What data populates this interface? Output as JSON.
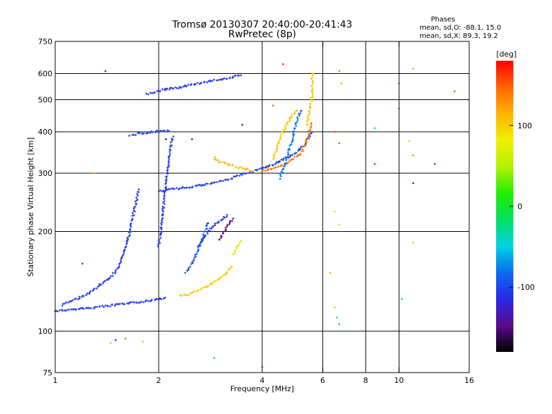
{
  "chart_data": {
    "type": "scatter",
    "title": "Tromsø 20130307 20:40:00-20:41:43",
    "subtitle": "RwPretec (8p)",
    "xlabel": "Frequency [MHz]",
    "ylabel": "Stationary phase Virtual Height [km]",
    "x_scale": "log",
    "y_scale": "log",
    "xlim": [
      1,
      16
    ],
    "ylim": [
      75,
      750
    ],
    "x_ticks": [
      1,
      2,
      4,
      6,
      8,
      10,
      16
    ],
    "y_ticks": [
      75,
      100,
      200,
      300,
      400,
      500,
      600,
      750
    ],
    "x_grid": [
      2,
      4,
      6,
      8,
      10
    ],
    "y_grid": [
      100,
      200,
      300,
      400,
      500,
      600
    ],
    "grid": true,
    "stats": {
      "title": "Phases",
      "line_o": "mean, sd,O: -88.1, 15.0",
      "line_x": "mean, sd,X:  89.3, 19.2"
    },
    "colorbar": {
      "label": "[deg]",
      "min": -180,
      "max": 180,
      "ticks": [
        100,
        0,
        -100
      ],
      "placement": "right",
      "colors": [
        "#000000",
        "#5a0a8c",
        "#2a28e6",
        "#0a6cf0",
        "#00d2e6",
        "#00e060",
        "#20f000",
        "#b4f000",
        "#f0f000",
        "#ffb400",
        "#ff6400",
        "#ff0000"
      ]
    },
    "traces": [
      {
        "name": "",
        "phase": -105,
        "x": [
          1.0,
          1.1,
          1.2,
          1.3,
          1.4,
          1.5,
          1.6,
          1.7,
          1.8,
          1.9,
          2.0,
          2.1
        ],
        "y": [
          115,
          116,
          117,
          118,
          119,
          120,
          121,
          122,
          123,
          124,
          125,
          126
        ]
      },
      {
        "name": "",
        "phase": -105,
        "x": [
          1.05,
          1.15,
          1.25,
          1.35,
          1.45,
          1.55,
          1.65,
          1.75
        ],
        "y": [
          120,
          125,
          130,
          138,
          145,
          160,
          200,
          270
        ]
      },
      {
        "name": "",
        "phase": -105,
        "x": [
          2.0,
          2.3,
          2.6,
          2.9,
          3.2,
          3.5,
          3.8,
          4.0,
          4.3,
          4.6,
          5.0,
          5.3,
          5.6
        ],
        "y": [
          265,
          270,
          275,
          280,
          288,
          298,
          305,
          310,
          318,
          330,
          345,
          365,
          400
        ]
      },
      {
        "name": "",
        "phase": -100,
        "x": [
          1.65,
          1.75,
          1.85,
          1.95,
          2.05,
          2.15
        ],
        "y": [
          390,
          395,
          398,
          400,
          402,
          405
        ]
      },
      {
        "name": "",
        "phase": -105,
        "x": [
          1.85,
          1.95,
          2.05,
          2.15,
          2.3,
          2.5,
          2.7,
          3.0,
          3.3,
          3.5
        ],
        "y": [
          520,
          528,
          535,
          540,
          545,
          555,
          565,
          575,
          585,
          595
        ]
      },
      {
        "name": "",
        "phase": -105,
        "x": [
          2.0,
          2.05,
          2.1,
          2.15,
          2.2
        ],
        "y": [
          180,
          220,
          280,
          340,
          390
        ]
      },
      {
        "name": "",
        "phase": -110,
        "x": [
          2.6,
          2.7,
          2.8,
          2.9,
          3.0,
          3.1,
          3.2
        ],
        "y": [
          180,
          190,
          200,
          210,
          215,
          220,
          225
        ]
      },
      {
        "name": "",
        "phase": -95,
        "x": [
          2.4,
          2.5,
          2.6,
          2.7,
          2.8
        ],
        "y": [
          150,
          160,
          175,
          195,
          215
        ]
      },
      {
        "name": "",
        "phase": -150,
        "x": [
          3.0,
          3.1,
          3.2,
          3.3
        ],
        "y": [
          190,
          200,
          210,
          220
        ]
      },
      {
        "name": "",
        "phase": 100,
        "x": [
          2.3,
          2.5,
          2.7,
          2.9,
          3.1,
          3.3
        ],
        "y": [
          128,
          130,
          135,
          140,
          148,
          158
        ]
      },
      {
        "name": "",
        "phase": 85,
        "x": [
          3.3,
          3.4,
          3.45,
          3.5
        ],
        "y": [
          170,
          180,
          185,
          190
        ]
      },
      {
        "name": "",
        "phase": 110,
        "x": [
          2.9,
          3.0,
          3.2,
          3.4,
          3.6,
          3.8
        ],
        "y": [
          335,
          325,
          318,
          312,
          308,
          305
        ]
      },
      {
        "name": "",
        "phase": 140,
        "x": [
          4.0,
          4.3,
          4.6,
          4.9,
          5.2,
          5.4,
          5.6
        ],
        "y": [
          305,
          310,
          318,
          330,
          345,
          380,
          430
        ]
      },
      {
        "name": "",
        "phase": 105,
        "x": [
          5.4,
          5.5,
          5.6,
          5.6,
          5.6
        ],
        "y": [
          420,
          470,
          520,
          570,
          610
        ]
      },
      {
        "name": "",
        "phase": 105,
        "x": [
          4.3,
          4.5,
          4.7,
          4.9,
          5.1
        ],
        "y": [
          330,
          380,
          420,
          450,
          470
        ]
      },
      {
        "name": "",
        "phase": -80,
        "x": [
          4.5,
          4.7,
          4.9,
          5.0,
          5.2
        ],
        "y": [
          290,
          330,
          380,
          420,
          470
        ]
      }
    ],
    "scatter_points": [
      {
        "name": "",
        "x": 1.4,
        "y": 610,
        "phase": -140
      },
      {
        "name": "",
        "x": 4.6,
        "y": 640,
        "phase": 170
      },
      {
        "name": "",
        "x": 6.7,
        "y": 610,
        "phase": 140
      },
      {
        "name": "",
        "x": 11.0,
        "y": 620,
        "phase": 30
      },
      {
        "name": "",
        "x": 10.0,
        "y": 560,
        "phase": -110
      },
      {
        "name": "",
        "x": 14.5,
        "y": 530,
        "phase": 150
      },
      {
        "name": "",
        "x": 10.0,
        "y": 470,
        "phase": -120
      },
      {
        "name": "",
        "x": 8.5,
        "y": 410,
        "phase": -40
      },
      {
        "name": "",
        "x": 6.5,
        "y": 400,
        "phase": 170
      },
      {
        "name": "",
        "x": 10.7,
        "y": 375,
        "phase": 100
      },
      {
        "name": "",
        "x": 6.7,
        "y": 370,
        "phase": 150
      },
      {
        "name": "",
        "x": 8.5,
        "y": 320,
        "phase": 170
      },
      {
        "name": "",
        "x": 12.7,
        "y": 320,
        "phase": -100
      },
      {
        "name": "",
        "x": 11.0,
        "y": 340,
        "phase": 20
      },
      {
        "name": "",
        "x": 6.5,
        "y": 230,
        "phase": 60
      },
      {
        "name": "",
        "x": 11.0,
        "y": 280,
        "phase": -120
      },
      {
        "name": "",
        "x": 6.7,
        "y": 210,
        "phase": 60
      },
      {
        "name": "",
        "x": 6.3,
        "y": 150,
        "phase": 120
      },
      {
        "name": "",
        "x": 1.3,
        "y": 300,
        "phase": 130
      },
      {
        "name": "",
        "x": 1.2,
        "y": 160,
        "phase": -100
      },
      {
        "name": "",
        "x": 1.5,
        "y": 94,
        "phase": -130
      },
      {
        "name": "",
        "x": 1.6,
        "y": 95,
        "phase": 150
      },
      {
        "name": "",
        "x": 1.45,
        "y": 92,
        "phase": 110
      },
      {
        "name": "",
        "x": 1.8,
        "y": 93,
        "phase": 110
      },
      {
        "name": "",
        "x": 2.9,
        "y": 83,
        "phase": -30
      },
      {
        "name": "",
        "x": 4.0,
        "y": 78,
        "phase": -100
      },
      {
        "name": "",
        "x": 6.6,
        "y": 110,
        "phase": -30
      },
      {
        "name": "",
        "x": 6.5,
        "y": 118,
        "phase": 110
      },
      {
        "name": "",
        "x": 6.7,
        "y": 105,
        "phase": -60
      },
      {
        "name": "",
        "x": 10.2,
        "y": 125,
        "phase": -40
      },
      {
        "name": "",
        "x": 11.0,
        "y": 185,
        "phase": 110
      },
      {
        "name": "",
        "x": 2.5,
        "y": 380,
        "phase": -140
      },
      {
        "name": "",
        "x": 2.1,
        "y": 380,
        "phase": -160
      },
      {
        "name": "",
        "x": 3.5,
        "y": 420,
        "phase": -150
      },
      {
        "name": "",
        "x": 5.6,
        "y": 500,
        "phase": 130
      },
      {
        "name": "",
        "x": 6.8,
        "y": 560,
        "phase": 120
      },
      {
        "name": "",
        "x": 4.3,
        "y": 480,
        "phase": 150
      }
    ]
  }
}
